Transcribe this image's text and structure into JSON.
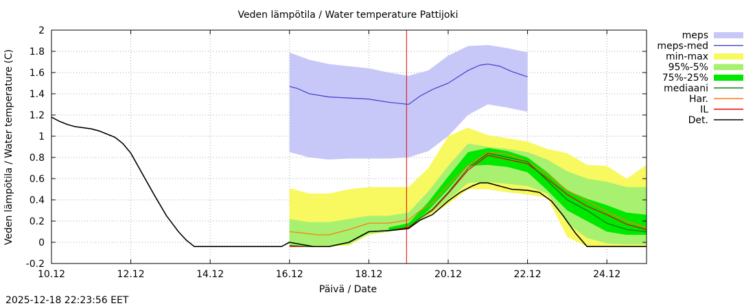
{
  "chart_data": {
    "type": "line",
    "title": "Veden lämpötila / Water temperature Pattijoki",
    "xlabel": "Päivä / Date",
    "ylabel": "Veden lämpötila / Water temperature (C)",
    "xlim": [
      0,
      15
    ],
    "ylim": [
      -0.2,
      2
    ],
    "x_ticks": [
      {
        "x": 0,
        "label": "10.12"
      },
      {
        "x": 2,
        "label": "12.12"
      },
      {
        "x": 4,
        "label": "14.12"
      },
      {
        "x": 6,
        "label": "16.12"
      },
      {
        "x": 8,
        "label": "18.12"
      },
      {
        "x": 10,
        "label": "20.12"
      },
      {
        "x": 12,
        "label": "22.12"
      },
      {
        "x": 14,
        "label": "24.12"
      }
    ],
    "y_ticks": [
      {
        "y": -0.2,
        "label": "-0.2"
      },
      {
        "y": 0,
        "label": "0"
      },
      {
        "y": 0.2,
        "label": "0.2"
      },
      {
        "y": 0.4,
        "label": "0.4"
      },
      {
        "y": 0.6,
        "label": "0.6"
      },
      {
        "y": 0.8,
        "label": "0.8"
      },
      {
        "y": 1,
        "label": "1"
      },
      {
        "y": 1.2,
        "label": "1.2"
      },
      {
        "y": 1.4,
        "label": "1.4"
      },
      {
        "y": 1.6,
        "label": "1.6"
      },
      {
        "y": 1.8,
        "label": "1.8"
      },
      {
        "y": 2,
        "label": "2"
      }
    ],
    "grid": true,
    "legend_position": "right",
    "now_marker_x": 8.95,
    "colors": {
      "meps": "#c8c8f8",
      "meps_med": "#4646d0",
      "minmax": "#f8f860",
      "p95_5": "#a8f070",
      "p75_25": "#00e800",
      "mediaani": "#107810",
      "har": "#ff7a10",
      "il": "#e80000",
      "det": "#000000",
      "now": "#dd0000"
    },
    "bands": {
      "meps": {
        "x": [
          6,
          6.5,
          7,
          7.5,
          8,
          8.5,
          9,
          9.5,
          10,
          10.5,
          11,
          11.5,
          12
        ],
        "upper": [
          1.79,
          1.72,
          1.68,
          1.66,
          1.64,
          1.6,
          1.57,
          1.62,
          1.76,
          1.85,
          1.86,
          1.83,
          1.79
        ],
        "lower": [
          0.85,
          0.8,
          0.78,
          0.79,
          0.79,
          0.79,
          0.8,
          0.86,
          1.0,
          1.2,
          1.3,
          1.27,
          1.23
        ]
      },
      "minmax": {
        "x": [
          6,
          6.5,
          7,
          7.5,
          8,
          8.5,
          9,
          9.5,
          10,
          10.5,
          11,
          11.5,
          12,
          12.5,
          13,
          13.5,
          14,
          14.5,
          15
        ],
        "upper": [
          0.51,
          0.46,
          0.46,
          0.5,
          0.52,
          0.52,
          0.52,
          0.7,
          1.0,
          1.08,
          1.01,
          0.98,
          0.95,
          0.88,
          0.84,
          0.73,
          0.72,
          0.6,
          0.73
        ],
        "lower": [
          -0.04,
          -0.04,
          -0.04,
          -0.03,
          0.07,
          0.1,
          0.14,
          0.24,
          0.36,
          0.5,
          0.5,
          0.47,
          0.45,
          0.42,
          0.05,
          -0.04,
          -0.04,
          -0.04,
          -0.04
        ]
      },
      "p95_5": {
        "x": [
          6,
          6.5,
          7,
          7.5,
          8,
          8.5,
          9,
          9.5,
          10,
          10.5,
          11,
          11.5,
          12,
          12.5,
          13,
          13.5,
          14,
          14.5,
          15
        ],
        "upper": [
          0.22,
          0.19,
          0.19,
          0.22,
          0.25,
          0.25,
          0.28,
          0.48,
          0.72,
          0.93,
          0.9,
          0.88,
          0.85,
          0.78,
          0.67,
          0.6,
          0.57,
          0.52,
          0.52
        ],
        "lower": [
          -0.03,
          -0.03,
          -0.03,
          -0.02,
          0.08,
          0.1,
          0.15,
          0.26,
          0.4,
          0.56,
          0.57,
          0.55,
          0.53,
          0.46,
          0.18,
          0.04,
          -0.01,
          -0.02,
          -0.02
        ]
      },
      "p75_25": {
        "x": [
          8.5,
          9,
          9.5,
          10,
          10.5,
          11,
          11.5,
          12,
          12.5,
          13,
          13.5,
          14,
          14.5,
          15
        ],
        "upper": [
          0.14,
          0.18,
          0.38,
          0.62,
          0.85,
          0.89,
          0.86,
          0.8,
          0.66,
          0.49,
          0.41,
          0.35,
          0.28,
          0.26
        ],
        "lower": [
          0.11,
          0.14,
          0.3,
          0.5,
          0.72,
          0.73,
          0.71,
          0.66,
          0.49,
          0.3,
          0.2,
          0.1,
          0.07,
          0.07
        ]
      }
    },
    "series": [
      {
        "name": "meps-med",
        "color_key": "meps_med",
        "x": [
          6,
          6.2,
          6.5,
          7,
          7.5,
          8,
          8.5,
          9,
          9.3,
          9.6,
          10,
          10.5,
          10.8,
          11,
          11.3,
          11.6,
          12
        ],
        "y": [
          1.47,
          1.45,
          1.4,
          1.37,
          1.36,
          1.35,
          1.32,
          1.3,
          1.38,
          1.44,
          1.5,
          1.62,
          1.67,
          1.68,
          1.66,
          1.61,
          1.56
        ]
      },
      {
        "name": "Har.",
        "color_key": "har",
        "x": [
          6,
          6.3,
          6.7,
          7,
          7.5,
          8,
          8.5,
          9,
          9.3,
          9.6,
          10,
          10.5,
          11,
          11.5,
          12,
          12.5,
          13,
          13.5,
          14,
          14.5,
          15
        ],
        "y": [
          0.1,
          0.09,
          0.07,
          0.07,
          0.12,
          0.18,
          0.18,
          0.21,
          0.3,
          0.37,
          0.54,
          0.72,
          0.85,
          0.83,
          0.76,
          0.64,
          0.49,
          0.39,
          0.29,
          0.2,
          0.14
        ]
      },
      {
        "name": "IL",
        "color_key": "il",
        "x": [
          6,
          6.5,
          7,
          7.5,
          8,
          8.5,
          9,
          9.3,
          9.6,
          10,
          10.5,
          11,
          11.5,
          12,
          12.5,
          13,
          13.5,
          14,
          14.5,
          15
        ],
        "y": [
          -0.04,
          -0.04,
          -0.04,
          0.0,
          0.1,
          0.11,
          0.14,
          0.23,
          0.3,
          0.46,
          0.68,
          0.82,
          0.78,
          0.74,
          0.6,
          0.45,
          0.34,
          0.26,
          0.17,
          0.12
        ]
      },
      {
        "name": "mediaani",
        "color_key": "mediaani",
        "x": [
          6,
          6.5,
          7,
          7.5,
          8,
          8.5,
          9,
          9.3,
          9.6,
          10,
          10.5,
          11,
          11.5,
          12,
          12.5,
          13,
          13.5,
          14,
          14.5,
          15
        ],
        "y": [
          -0.03,
          -0.04,
          -0.04,
          0.0,
          0.1,
          0.11,
          0.13,
          0.23,
          0.31,
          0.47,
          0.7,
          0.84,
          0.8,
          0.76,
          0.58,
          0.4,
          0.3,
          0.18,
          0.12,
          0.1
        ]
      },
      {
        "name": "Det.",
        "color_key": "det",
        "x": [
          0,
          0.2,
          0.4,
          0.6,
          0.8,
          1,
          1.2,
          1.4,
          1.6,
          1.8,
          2,
          2.3,
          2.6,
          2.9,
          3.2,
          3.4,
          3.6,
          4,
          5,
          5.8,
          6,
          6.3,
          6.6,
          7,
          7.5,
          8,
          8.5,
          9,
          9.3,
          9.6,
          10,
          10.3,
          10.6,
          10.8,
          11,
          11.3,
          11.6,
          12,
          12.3,
          12.6,
          12.9,
          13.2,
          13.5,
          14,
          15
        ],
        "y": [
          1.18,
          1.14,
          1.11,
          1.09,
          1.08,
          1.07,
          1.05,
          1.02,
          0.99,
          0.93,
          0.84,
          0.64,
          0.44,
          0.25,
          0.1,
          0.02,
          -0.04,
          -0.04,
          -0.04,
          -0.04,
          0.0,
          -0.02,
          -0.04,
          -0.04,
          0.0,
          0.1,
          0.11,
          0.13,
          0.21,
          0.26,
          0.39,
          0.47,
          0.53,
          0.56,
          0.56,
          0.53,
          0.5,
          0.49,
          0.47,
          0.39,
          0.25,
          0.09,
          -0.04,
          -0.04,
          -0.04
        ]
      }
    ],
    "legend": [
      {
        "label": "meps",
        "style": "box",
        "color_key": "meps"
      },
      {
        "label": "meps-med",
        "style": "line",
        "color_key": "meps_med"
      },
      {
        "label": "min-max",
        "style": "box",
        "color_key": "minmax"
      },
      {
        "label": "95%-5%",
        "style": "box",
        "color_key": "p95_5"
      },
      {
        "label": "75%-25%",
        "style": "box",
        "color_key": "p75_25"
      },
      {
        "label": "mediaani",
        "style": "line",
        "color_key": "mediaani"
      },
      {
        "label": "Har.",
        "style": "line",
        "color_key": "har"
      },
      {
        "label": "IL",
        "style": "line",
        "color_key": "il"
      },
      {
        "label": "Det.",
        "style": "line",
        "color_key": "det"
      }
    ]
  },
  "footer": {
    "timestamp": "2025-12-18 22:23:56 EET"
  }
}
